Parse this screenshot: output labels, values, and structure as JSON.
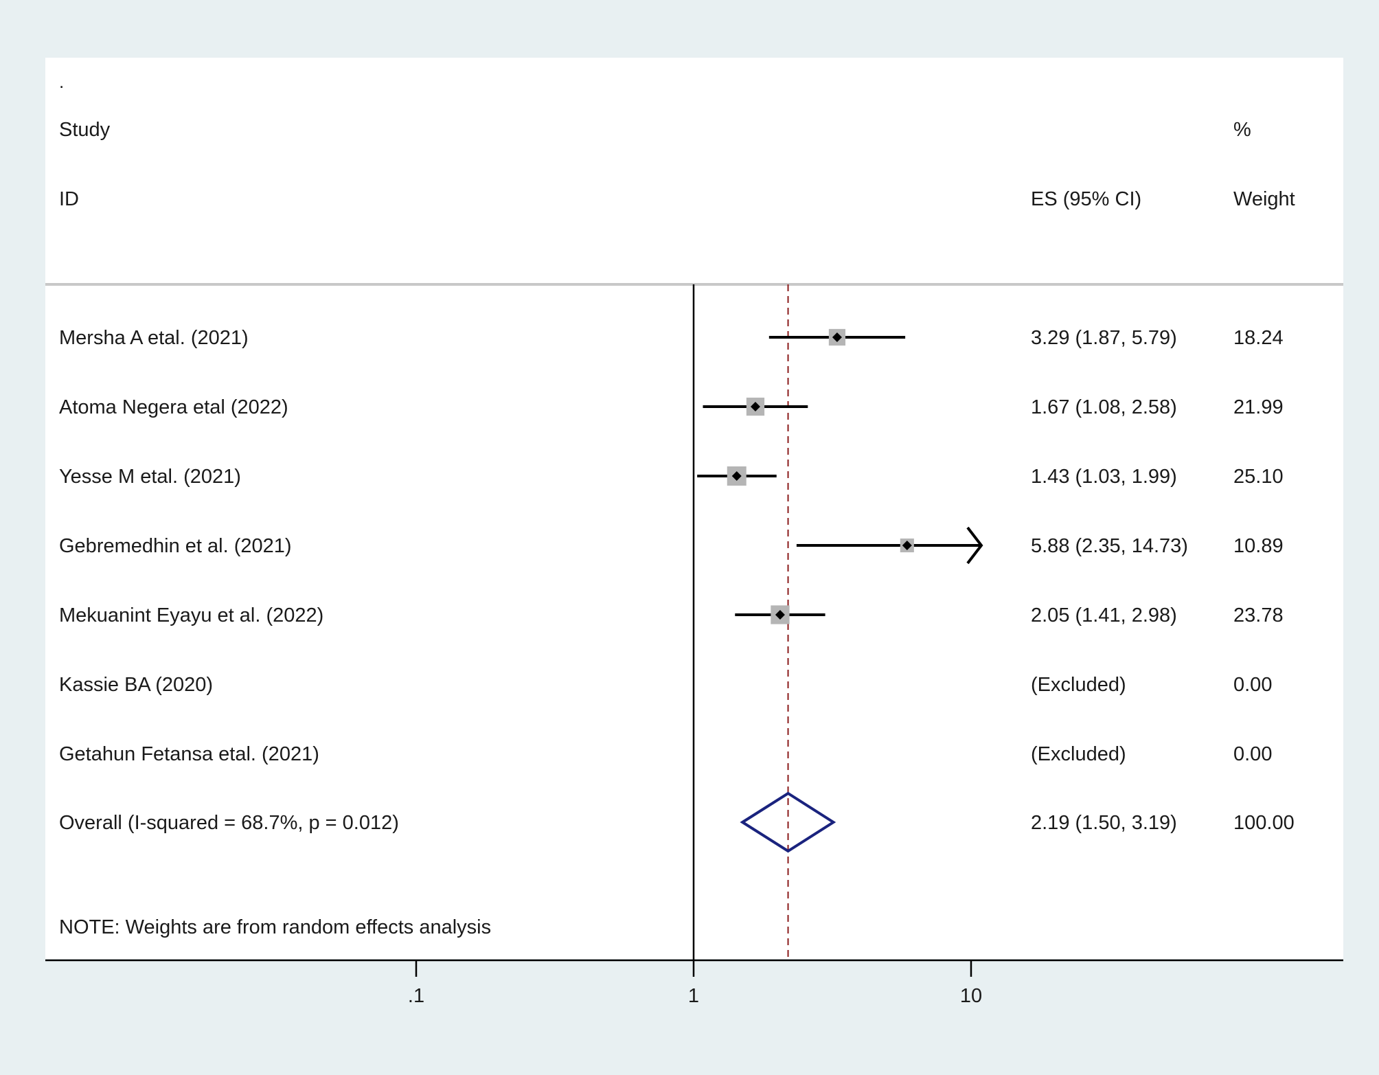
{
  "chart_data": {
    "type": "forest",
    "corner_mark": ".",
    "header": {
      "study_line1": "Study",
      "study_line2": "ID",
      "es_label": "ES (95% CI)",
      "weight_line1": "%",
      "weight_line2": "Weight"
    },
    "studies": [
      {
        "label": "Mersha A etal. (2021)",
        "es": 3.29,
        "lo": 1.87,
        "hi": 5.79,
        "es_text": "3.29 (1.87, 5.79)",
        "weight": 18.24,
        "weight_text": "18.24"
      },
      {
        "label": "Atoma Negera etal (2022)",
        "es": 1.67,
        "lo": 1.08,
        "hi": 2.58,
        "es_text": "1.67 (1.08, 2.58)",
        "weight": 21.99,
        "weight_text": "21.99"
      },
      {
        "label": "Yesse M etal. (2021)",
        "es": 1.43,
        "lo": 1.03,
        "hi": 1.99,
        "es_text": "1.43 (1.03, 1.99)",
        "weight": 25.1,
        "weight_text": "25.10"
      },
      {
        "label": "Gebremedhin et al. (2021)",
        "es": 5.88,
        "lo": 2.35,
        "hi": 14.73,
        "es_text": "5.88 (2.35, 14.73)",
        "weight": 10.89,
        "weight_text": "10.89"
      },
      {
        "label": "Mekuanint Eyayu et al. (2022)",
        "es": 2.05,
        "lo": 1.41,
        "hi": 2.98,
        "es_text": "2.05 (1.41, 2.98)",
        "weight": 23.78,
        "weight_text": "23.78"
      },
      {
        "label": "Kassie BA (2020)",
        "es": null,
        "lo": null,
        "hi": null,
        "es_text": "(Excluded)",
        "weight": 0.0,
        "weight_text": "0.00"
      },
      {
        "label": "Getahun Fetansa etal. (2021)",
        "es": null,
        "lo": null,
        "hi": null,
        "es_text": "(Excluded)",
        "weight": 0.0,
        "weight_text": "0.00"
      }
    ],
    "overall": {
      "label": "Overall  (I-squared = 68.7%, p = 0.012)",
      "es": 2.19,
      "lo": 1.5,
      "hi": 3.19,
      "es_text": "2.19 (1.50, 3.19)",
      "weight_text": "100.00"
    },
    "note": "NOTE: Weights are from random effects analysis",
    "x_scale": "log",
    "x_ticks": [
      {
        "value": 0.1,
        "label": ".1"
      },
      {
        "value": 1,
        "label": "1"
      },
      {
        "value": 10,
        "label": "10"
      }
    ],
    "display_max": 10.89,
    "colors": {
      "overall_diamond": "#1a237e",
      "reference_line": "#8b1a1a",
      "weight_box": "#b5b5b5",
      "outer_background": "#e8f0f2"
    }
  }
}
